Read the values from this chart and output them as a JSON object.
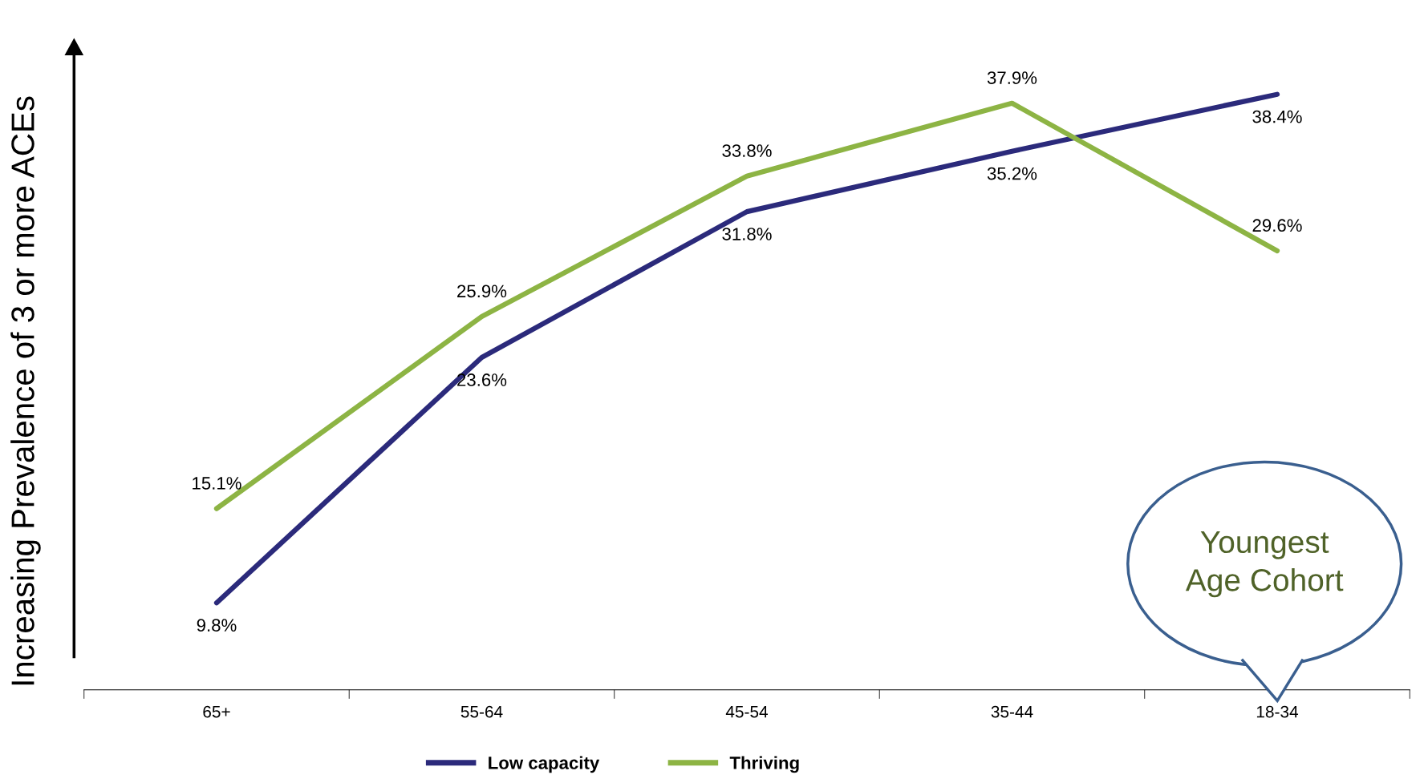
{
  "chart_data": {
    "type": "line",
    "ylabel": "Increasing Prevalence of 3 or more ACEs",
    "categories": [
      "65+",
      "55-64",
      "45-54",
      "35-44",
      "18-34"
    ],
    "series": [
      {
        "name": "Low capacity",
        "color": "#2b2a7b",
        "values": [
          9.8,
          23.6,
          31.8,
          35.2,
          38.4
        ],
        "value_labels": [
          "9.8%",
          "23.6%",
          "31.8%",
          "35.2%",
          "38.4%"
        ]
      },
      {
        "name": "Thriving",
        "color": "#8db444",
        "values": [
          15.1,
          25.9,
          33.8,
          37.9,
          29.6
        ],
        "value_labels": [
          "15.1%",
          "25.9%",
          "33.8%",
          "37.9%",
          "29.6%"
        ]
      }
    ],
    "tick_labels": "x",
    "legend": "bottom",
    "grid": false,
    "marker": "none",
    "line_style": "solid",
    "annotations": [
      "Youngest\nAge Cohort"
    ]
  }
}
